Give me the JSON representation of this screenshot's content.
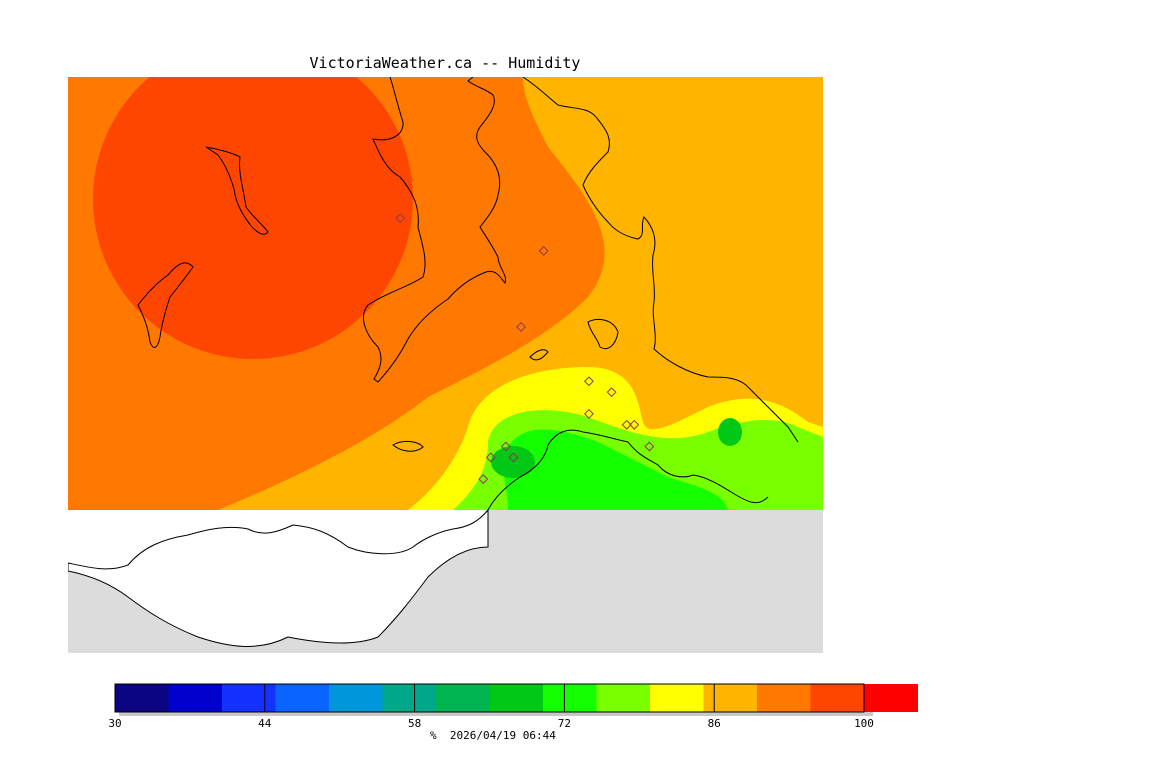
{
  "title": "VictoriaWeather.ca -- Humidity",
  "legend": {
    "unit": "%",
    "timestamp": "2026/04/19 06:44",
    "min": 30,
    "max": 100,
    "step": 5,
    "tick_values": [
      "30",
      "44",
      "58",
      "72",
      "86",
      "100"
    ],
    "colors": [
      "#0b0483",
      "#0000cc",
      "#1432ff",
      "#0a64ff",
      "#0096dc",
      "#00a88a",
      "#00b450",
      "#00c814",
      "#14ff00",
      "#78ff00",
      "#ffff00",
      "#ffb400",
      "#ff7800",
      "#ff4600",
      "#ff0000"
    ]
  },
  "stations": [
    {
      "lat": 48.65,
      "lon": -123.61
    },
    {
      "lat": 48.62,
      "lon": -123.42
    },
    {
      "lat": 48.55,
      "lon": -123.45
    },
    {
      "lat": 48.5,
      "lon": -123.36
    },
    {
      "lat": 48.49,
      "lon": -123.33
    },
    {
      "lat": 48.47,
      "lon": -123.36
    },
    {
      "lat": 48.46,
      "lon": -123.31
    },
    {
      "lat": 48.46,
      "lon": -123.3
    },
    {
      "lat": 48.44,
      "lon": -123.28
    },
    {
      "lat": 48.43,
      "lon": -123.49
    },
    {
      "lat": 48.43,
      "lon": -123.46
    },
    {
      "lat": 48.41,
      "lon": -123.5
    },
    {
      "lat": 48.44,
      "lon": -123.47
    }
  ]
}
